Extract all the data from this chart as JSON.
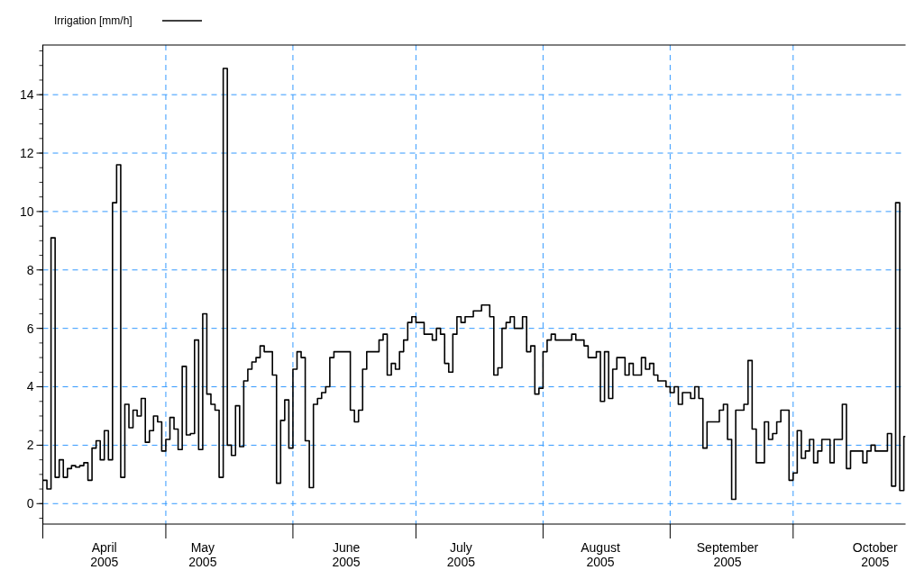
{
  "chart_data": {
    "type": "step",
    "legend": "top left",
    "grid": true,
    "xlim": [
      "2005-04-01",
      "2005-10-28T10:00"
    ],
    "xticks": [
      {
        "value": "2005-04-01",
        "label": null
      },
      {
        "value": "2005-05-01",
        "label": null
      },
      {
        "value": "2005-06-01",
        "label": null
      },
      {
        "value": "2005-07-01",
        "label": null
      },
      {
        "value": "2005-08-01",
        "label": null
      },
      {
        "value": "2005-09-01",
        "label": null
      },
      {
        "value": "2005-10-01",
        "label": null
      },
      {
        "value": "2005-04-16",
        "label": "April\n2005"
      },
      {
        "value": "2005-05-10",
        "label": "May\n2005"
      },
      {
        "value": "2005-06-14",
        "label": "June\n2005"
      },
      {
        "value": "2005-07-12",
        "label": "July\n2005"
      },
      {
        "value": "2005-08-15",
        "label": "August\n2005"
      },
      {
        "value": "2005-09-15",
        "label": "September\n2005"
      },
      {
        "value": "2005-10-21",
        "label": "October\n2005"
      }
    ],
    "ylim": [
      -0.7,
      15.7
    ],
    "yticks": [
      0,
      2,
      4,
      6,
      8,
      10,
      12,
      14
    ],
    "series": [
      {
        "name": "Irrigation [mm/h]",
        "color": "#000000",
        "x": [
          "2005-04-01",
          "2005-04-02",
          "2005-04-03",
          "2005-04-04",
          "2005-04-05",
          "2005-04-06",
          "2005-04-07",
          "2005-04-08",
          "2005-04-09",
          "2005-04-10",
          "2005-04-11",
          "2005-04-12",
          "2005-04-13",
          "2005-04-14",
          "2005-04-15",
          "2005-04-16",
          "2005-04-17",
          "2005-04-18",
          "2005-04-19",
          "2005-04-20",
          "2005-04-21",
          "2005-04-22",
          "2005-04-23",
          "2005-04-24",
          "2005-04-25",
          "2005-04-26",
          "2005-04-27",
          "2005-04-28",
          "2005-04-29",
          "2005-04-30",
          "2005-05-01",
          "2005-05-02",
          "2005-05-03",
          "2005-05-04",
          "2005-05-05",
          "2005-05-06",
          "2005-05-07",
          "2005-05-08",
          "2005-05-09",
          "2005-05-10",
          "2005-05-11",
          "2005-05-12",
          "2005-05-13",
          "2005-05-14",
          "2005-05-15",
          "2005-05-16",
          "2005-05-17",
          "2005-05-18",
          "2005-05-19",
          "2005-05-20",
          "2005-05-21",
          "2005-05-22",
          "2005-05-23",
          "2005-05-24",
          "2005-05-25",
          "2005-05-27",
          "2005-05-28",
          "2005-05-29",
          "2005-05-30",
          "2005-05-31",
          "2005-06-01",
          "2005-06-02",
          "2005-06-03",
          "2005-06-04",
          "2005-06-05",
          "2005-06-06",
          "2005-06-07",
          "2005-06-08",
          "2005-06-09",
          "2005-06-10",
          "2005-06-11",
          "2005-06-15",
          "2005-06-16",
          "2005-06-17",
          "2005-06-18",
          "2005-06-19",
          "2005-06-22",
          "2005-06-23",
          "2005-06-24",
          "2005-06-25",
          "2005-06-26",
          "2005-06-27",
          "2005-06-28",
          "2005-06-29",
          "2005-06-30",
          "2005-07-01",
          "2005-07-03",
          "2005-07-05",
          "2005-07-06",
          "2005-07-07",
          "2005-07-08",
          "2005-07-09",
          "2005-07-10",
          "2005-07-11",
          "2005-07-12",
          "2005-07-13",
          "2005-07-15",
          "2005-07-17",
          "2005-07-19",
          "2005-07-20",
          "2005-07-21",
          "2005-07-22",
          "2005-07-23",
          "2005-07-24",
          "2005-07-25",
          "2005-07-27",
          "2005-07-28",
          "2005-07-29",
          "2005-07-30",
          "2005-07-31",
          "2005-08-01",
          "2005-08-02",
          "2005-08-03",
          "2005-08-04",
          "2005-08-08",
          "2005-08-09",
          "2005-08-11",
          "2005-08-12",
          "2005-08-14",
          "2005-08-15",
          "2005-08-16",
          "2005-08-17",
          "2005-08-18",
          "2005-08-19",
          "2005-08-21",
          "2005-08-22",
          "2005-08-23",
          "2005-08-25",
          "2005-08-26",
          "2005-08-27",
          "2005-08-28",
          "2005-08-29",
          "2005-08-31",
          "2005-09-01",
          "2005-09-02",
          "2005-09-03",
          "2005-09-04",
          "2005-09-06",
          "2005-09-07",
          "2005-09-08",
          "2005-09-09",
          "2005-09-10",
          "2005-09-13",
          "2005-09-14",
          "2005-09-15",
          "2005-09-16",
          "2005-09-17",
          "2005-09-19",
          "2005-09-20",
          "2005-09-21",
          "2005-09-22",
          "2005-09-24",
          "2005-09-25",
          "2005-09-26",
          "2005-09-27",
          "2005-09-28",
          "2005-09-30",
          "2005-10-01",
          "2005-10-02",
          "2005-10-03",
          "2005-10-04",
          "2005-10-05",
          "2005-10-06",
          "2005-10-07",
          "2005-10-08",
          "2005-10-10",
          "2005-10-11",
          "2005-10-13",
          "2005-10-14",
          "2005-10-15",
          "2005-10-18",
          "2005-10-19",
          "2005-10-20",
          "2005-10-21",
          "2005-10-24",
          "2005-10-25",
          "2005-10-26",
          "2005-10-27",
          "2005-10-28"
        ],
        "values": [
          0.8,
          0.5,
          9.1,
          0.9,
          1.5,
          0.9,
          1.2,
          1.3,
          1.25,
          1.3,
          1.4,
          0.8,
          1.9,
          2.15,
          1.5,
          2.5,
          1.5,
          10.3,
          11.6,
          0.9,
          3.4,
          2.6,
          3.2,
          3.0,
          3.6,
          2.1,
          2.5,
          3.0,
          2.8,
          1.8,
          2.2,
          2.95,
          2.55,
          1.85,
          4.7,
          2.35,
          2.4,
          5.6,
          1.85,
          6.5,
          3.75,
          3.4,
          3.2,
          0.9,
          14.9,
          2.0,
          1.65,
          3.35,
          1.95,
          4.2,
          4.6,
          4.85,
          5.0,
          5.4,
          5.2,
          4.4,
          0.7,
          2.85,
          3.55,
          1.9,
          4.6,
          5.2,
          5.0,
          2.15,
          0.55,
          3.4,
          3.6,
          3.8,
          4.0,
          5.0,
          5.2,
          3.2,
          2.8,
          3.2,
          4.6,
          5.2,
          5.6,
          5.8,
          4.4,
          4.8,
          4.6,
          5.2,
          5.6,
          6.2,
          6.4,
          6.2,
          5.8,
          5.6,
          6.0,
          5.8,
          4.8,
          4.5,
          5.8,
          6.4,
          6.2,
          6.4,
          6.6,
          6.8,
          6.4,
          4.4,
          4.65,
          6.0,
          6.2,
          6.4,
          6.0,
          6.4,
          5.2,
          5.4,
          3.75,
          3.95,
          5.2,
          5.6,
          5.8,
          5.6,
          5.8,
          5.6,
          5.4,
          5.0,
          5.2,
          3.5,
          5.2,
          3.6,
          4.6,
          5.0,
          4.4,
          4.8,
          4.4,
          5.0,
          4.6,
          4.8,
          4.4,
          4.2,
          4.0,
          3.8,
          4.0,
          3.4,
          3.8,
          3.6,
          4.0,
          3.6,
          1.9,
          2.8,
          3.2,
          3.4,
          2.2,
          0.15,
          3.2,
          3.4,
          4.9,
          2.55,
          1.4,
          2.8,
          2.2,
          2.4,
          2.8,
          3.2,
          0.8,
          1.05,
          2.5,
          1.55,
          1.8,
          2.2,
          1.4,
          1.8,
          2.2,
          1.4,
          2.2,
          3.4,
          1.2,
          1.8,
          1.4,
          1.8,
          2.0,
          1.8,
          2.4,
          0.6,
          10.3,
          0.45,
          2.3
        ]
      }
    ]
  }
}
